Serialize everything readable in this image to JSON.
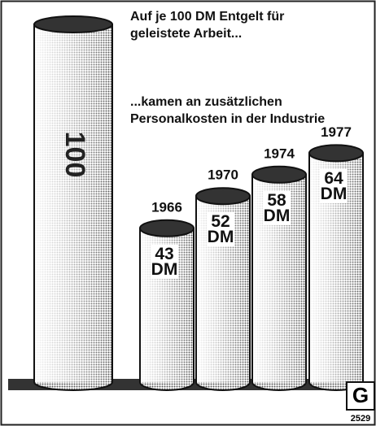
{
  "chart_data": {
    "type": "bar",
    "title": "Auf je 100 DM Entgelt für geleistete Arbeit...",
    "subtitle": "...kamen an zusätzlichen Personalkosten in der Industrie",
    "reference": {
      "value": 100,
      "label": "100"
    },
    "categories": [
      "1966",
      "1970",
      "1974",
      "1977"
    ],
    "values": [
      43,
      52,
      58,
      64
    ],
    "value_labels": [
      "43 DM",
      "52 DM",
      "58 DM",
      "64 DM"
    ],
    "color": "#cfcfcf",
    "logo": "G",
    "code": "2529"
  }
}
